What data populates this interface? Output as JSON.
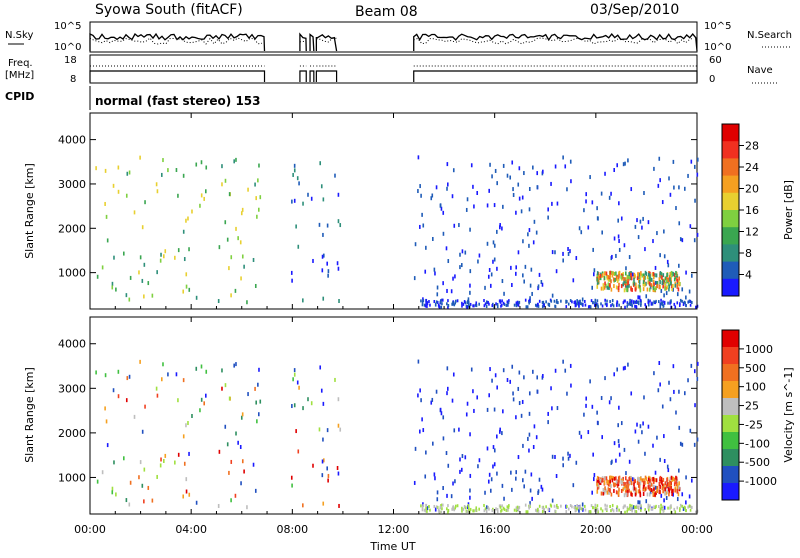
{
  "header": {
    "station": "Syowa South (fitACF)",
    "beam": "Beam 08",
    "date": "03/Sep/2010"
  },
  "colors": {
    "plot_frame": "#000000",
    "power_scale": [
      "#1a1aff",
      "#1f5cb8",
      "#2e8f7a",
      "#3aa650",
      "#7fd040",
      "#e8d030",
      "#f5a020",
      "#f07020",
      "#f03020",
      "#e00000"
    ],
    "velocity_scale": [
      "#e00000",
      "#f04020",
      "#f07020",
      "#f5a020",
      "#bebebe",
      "#a0e040",
      "#40c040",
      "#2e8f60",
      "#2050c0",
      "#1a1aff"
    ]
  },
  "chart_data": [
    {
      "type": "line",
      "name": "noise-panel",
      "left_label": "N.Sky",
      "right_label": "N.Search",
      "left_ticks": [
        "10^5",
        "10^0"
      ],
      "right_ticks": [
        "10^5",
        "10^0"
      ],
      "active_intervals_h": [
        [
          0.0,
          6.9
        ],
        [
          8.3,
          8.55
        ],
        [
          8.7,
          8.85
        ],
        [
          8.95,
          9.75
        ],
        [
          12.8,
          24.0
        ]
      ]
    },
    {
      "type": "line",
      "name": "freq-panel",
      "left_label_top": "Freq.",
      "left_label_bottom": "[MHz]",
      "right_label": "Nave",
      "left_ticks": [
        18,
        8
      ],
      "right_ticks": [
        60,
        0
      ]
    },
    {
      "type": "table",
      "name": "cpid-row",
      "label": "CPID",
      "value": "normal (fast stereo) 153"
    },
    {
      "type": "heatmap",
      "name": "power-panel",
      "ylabel": "Slant Range [km]",
      "xlim_h": [
        0,
        24
      ],
      "ylim_km": [
        180,
        4600
      ],
      "y_ticks": [
        1000,
        2000,
        3000,
        4000
      ],
      "colorbar": {
        "label": "Power [dB]",
        "ticks": [
          28,
          24,
          20,
          16,
          12,
          8,
          4
        ]
      },
      "scatter_regions": [
        {
          "t": [
            0.0,
            6.9
          ],
          "r": [
            300,
            3600
          ],
          "density": 0.12
        },
        {
          "t": [
            7.9,
            9.9
          ],
          "r": [
            300,
            3600
          ],
          "density": 0.15
        },
        {
          "t": [
            12.8,
            24.0
          ],
          "r": [
            250,
            3600
          ],
          "density": 0.2
        },
        {
          "t": [
            20.0,
            23.3
          ],
          "r": [
            600,
            1000
          ],
          "density": 0.7
        }
      ]
    },
    {
      "type": "heatmap",
      "name": "velocity-panel",
      "ylabel": "Slant Range [km]",
      "xlim_h": [
        0,
        24
      ],
      "ylim_km": [
        180,
        4600
      ],
      "y_ticks": [
        1000,
        2000,
        3000,
        4000
      ],
      "colorbar": {
        "label": "Velocity [m s^-1]",
        "ticks": [
          1000,
          500,
          100,
          25,
          -25,
          -100,
          -500,
          -1000
        ]
      }
    }
  ],
  "xaxis": {
    "label": "Time UT",
    "ticks": [
      "00:00",
      "04:00",
      "08:00",
      "12:00",
      "16:00",
      "20:00",
      "00:00"
    ]
  }
}
